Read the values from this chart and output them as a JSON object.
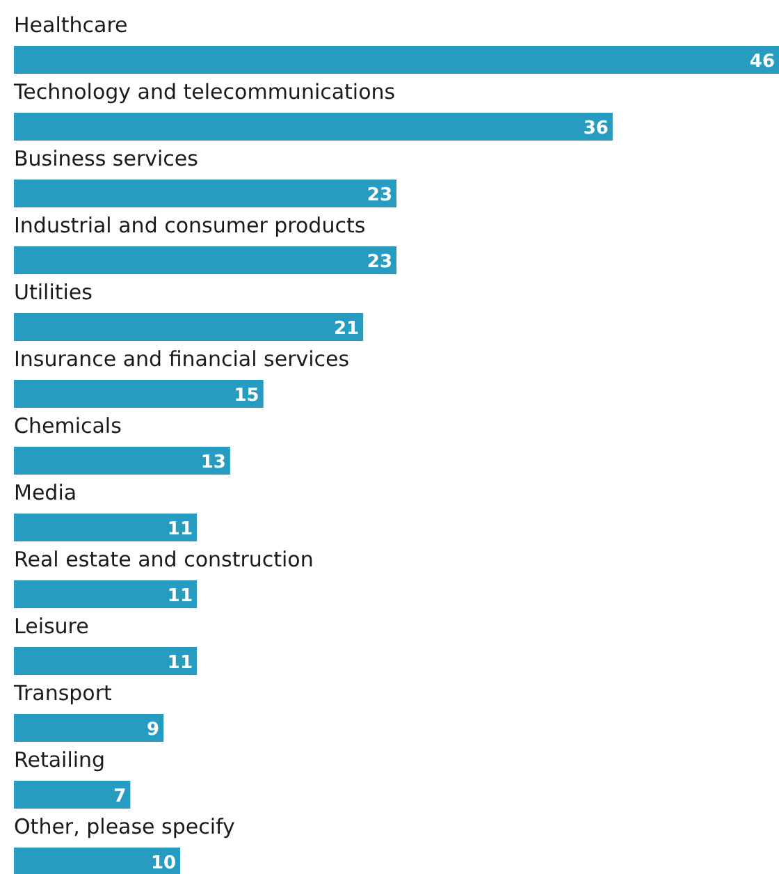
{
  "chart_data": {
    "type": "bar",
    "orientation": "horizontal",
    "data_labels": true,
    "color": "#279cc0",
    "categories": [
      "Healthcare",
      "Technology and telecommunications",
      "Business services",
      "Industrial and consumer products",
      "Utilities",
      "Insurance and financial services",
      "Chemicals",
      "Media",
      "Real estate and construction",
      "Leisure",
      "Transport",
      "Retailing",
      "Other, please specify"
    ],
    "values": [
      46,
      36,
      23,
      23,
      21,
      15,
      13,
      11,
      11,
      11,
      9,
      7,
      10
    ]
  }
}
